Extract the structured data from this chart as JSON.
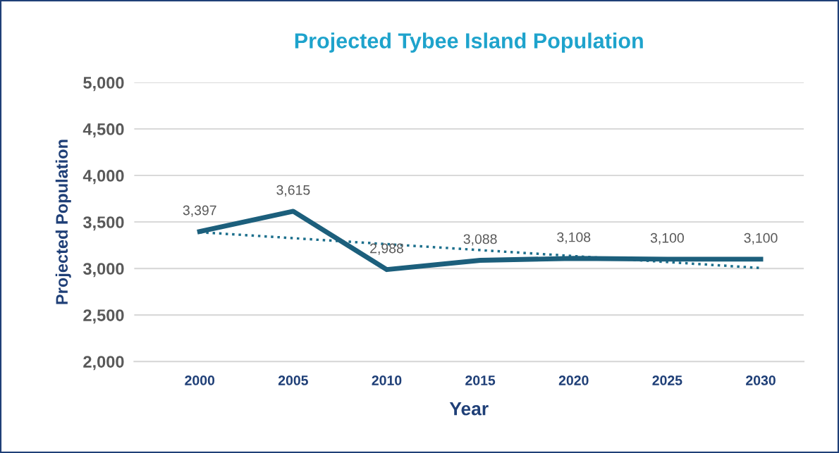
{
  "chart_data": {
    "type": "line",
    "title": "Projected Tybee Island Population",
    "xlabel": "Year",
    "ylabel": "Projected Population",
    "x": [
      2000,
      2005,
      2010,
      2015,
      2020,
      2025,
      2030
    ],
    "series": [
      {
        "color": "#1c5f7c",
        "values": [
          3397,
          3615,
          2988,
          3088,
          3108,
          3100,
          3100
        ],
        "value_labels": [
          "3,397",
          "3,615",
          "2,988",
          "3,088",
          "3,108",
          "3,100",
          "3,100"
        ],
        "line_style": "solid"
      },
      {
        "type": "line",
        "color": "#1c6f8c",
        "x": [
          2000,
          2030
        ],
        "values": [
          3390,
          3005
        ],
        "line_style": "dotted"
      }
    ],
    "xlim": [
      1996.5,
      2032.3
    ],
    "xticks": [
      2000,
      2005,
      2010,
      2015,
      2020,
      2025,
      2030
    ],
    "ylim": [
      2000,
      5000
    ],
    "yticks": [
      {
        "value": 2000,
        "label": "2,000"
      },
      {
        "value": 2500,
        "label": "2,500"
      },
      {
        "value": 3000,
        "label": "3,000"
      },
      {
        "value": 3500,
        "label": "3,500"
      },
      {
        "value": 4000,
        "label": "4,000"
      },
      {
        "value": 4500,
        "label": "4,500"
      },
      {
        "value": 5000,
        "label": "5,000"
      }
    ],
    "grid": "y",
    "marker": "none"
  }
}
